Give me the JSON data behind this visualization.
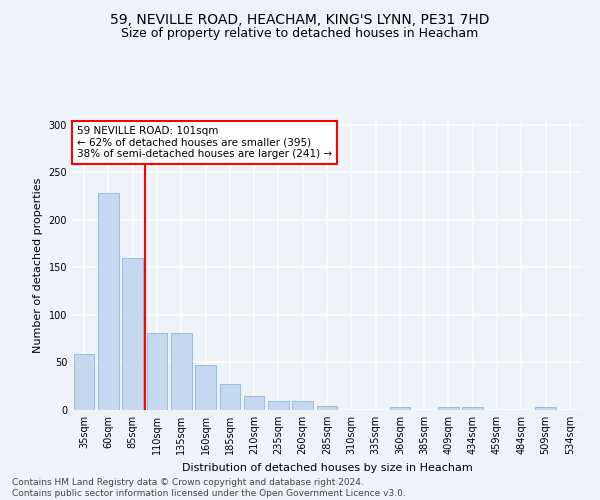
{
  "title_line1": "59, NEVILLE ROAD, HEACHAM, KING'S LYNN, PE31 7HD",
  "title_line2": "Size of property relative to detached houses in Heacham",
  "xlabel": "Distribution of detached houses by size in Heacham",
  "ylabel": "Number of detached properties",
  "footer": "Contains HM Land Registry data © Crown copyright and database right 2024.\nContains public sector information licensed under the Open Government Licence v3.0.",
  "categories": [
    "35sqm",
    "60sqm",
    "85sqm",
    "110sqm",
    "135sqm",
    "160sqm",
    "185sqm",
    "210sqm",
    "235sqm",
    "260sqm",
    "285sqm",
    "310sqm",
    "335sqm",
    "360sqm",
    "385sqm",
    "409sqm",
    "434sqm",
    "459sqm",
    "484sqm",
    "509sqm",
    "534sqm"
  ],
  "values": [
    59,
    228,
    160,
    81,
    81,
    47,
    27,
    15,
    9,
    9,
    4,
    0,
    0,
    3,
    0,
    3,
    3,
    0,
    0,
    3,
    0
  ],
  "bar_color": "#c5d8f0",
  "bar_edge_color": "#7aafd4",
  "annotation_text": "59 NEVILLE ROAD: 101sqm\n← 62% of detached houses are smaller (395)\n38% of semi-detached houses are larger (241) →",
  "vline_x_index": 2,
  "vline_color": "red",
  "annotation_box_color": "white",
  "annotation_box_edge": "red",
  "ylim": [
    0,
    305
  ],
  "yticks": [
    0,
    50,
    100,
    150,
    200,
    250,
    300
  ],
  "bg_color": "#eef2f9",
  "grid_color": "white",
  "title_fontsize": 10,
  "subtitle_fontsize": 9,
  "axis_label_fontsize": 8,
  "tick_fontsize": 7,
  "footer_fontsize": 6.5,
  "ann_fontsize": 7.5
}
